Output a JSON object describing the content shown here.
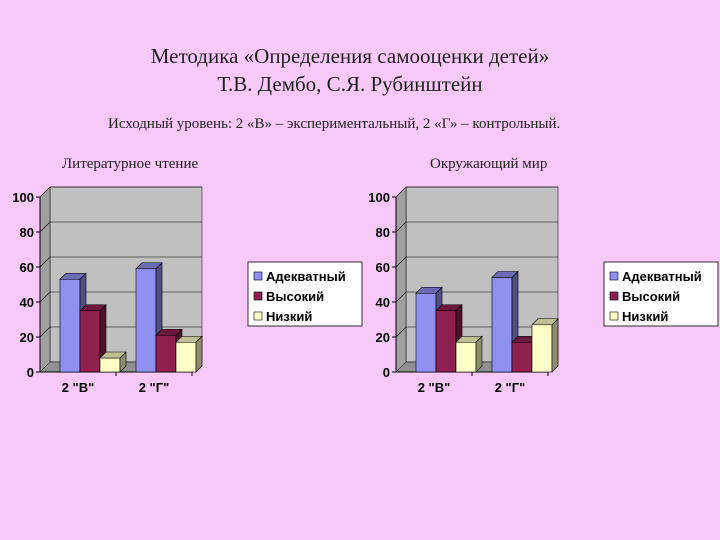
{
  "title_line1": "Методика «Определения самооценки детей»",
  "title_line2": "Т.В. Дембо, С.Я. Рубинштейн",
  "subtitle": "Исходный уровень: 2 «В» – экспериментальный, 2 «Г» – контрольный.",
  "chart_data": [
    {
      "type": "bar",
      "title": "Литературное чтение",
      "categories": [
        "2 \"В\"",
        "2 \"Г\""
      ],
      "series": [
        {
          "name": "Адекватный",
          "values": [
            53,
            59
          ],
          "color": "#9090f0"
        },
        {
          "name": "Высокий",
          "values": [
            35,
            21
          ],
          "color": "#902050"
        },
        {
          "name": "Низкий",
          "values": [
            8,
            17
          ],
          "color": "#ffffc8"
        }
      ],
      "ylim": [
        0,
        100
      ],
      "yticks": [
        0,
        20,
        40,
        60,
        80,
        100
      ],
      "grid": true,
      "legend": "right"
    },
    {
      "type": "bar",
      "title": "Окружающий мир",
      "categories": [
        "2 \"В\"",
        "2 \"Г\""
      ],
      "series": [
        {
          "name": "Адекватный",
          "values": [
            45,
            54
          ],
          "color": "#9090f0"
        },
        {
          "name": "Высокий",
          "values": [
            35,
            17
          ],
          "color": "#902050"
        },
        {
          "name": "Низкий",
          "values": [
            17,
            27
          ],
          "color": "#ffffc8"
        }
      ],
      "ylim": [
        0,
        100
      ],
      "yticks": [
        0,
        20,
        40,
        60,
        80,
        100
      ],
      "grid": true,
      "legend": "right"
    }
  ]
}
